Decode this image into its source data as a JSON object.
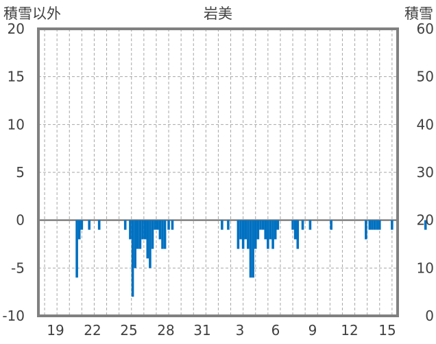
{
  "chart_data": {
    "type": "bar",
    "title": "岩美",
    "left_axis_title": "積雪以外",
    "right_axis_title": "積雪",
    "left_ylim": [
      -10,
      20
    ],
    "right_ylim": [
      0,
      60
    ],
    "left_ticks": [
      "20",
      "15",
      "10",
      "5",
      "0",
      "-5",
      "-10"
    ],
    "right_ticks": [
      "60",
      "50",
      "40",
      "30",
      "20",
      "10",
      "0"
    ],
    "x_tick_labels": [
      "19",
      "22",
      "25",
      "28",
      "31",
      "3",
      "6",
      "9",
      "12",
      "15"
    ],
    "grid": "dashed",
    "bar_color": "#0070C0",
    "series": [
      {
        "values": [
          [
            20.6,
            -6
          ],
          [
            20.8,
            -2
          ],
          [
            21,
            -1
          ],
          [
            21.6,
            -1
          ],
          [
            22.4,
            -1
          ],
          [
            24.5,
            -1
          ],
          [
            24.9,
            -2
          ],
          [
            25.1,
            -8
          ],
          [
            25.3,
            -5
          ],
          [
            25.5,
            -3
          ],
          [
            25.7,
            -3
          ],
          [
            25.9,
            -2
          ],
          [
            26.1,
            -2
          ],
          [
            26.3,
            -4
          ],
          [
            26.5,
            -5
          ],
          [
            26.7,
            -3
          ],
          [
            26.9,
            -1
          ],
          [
            27.1,
            -1
          ],
          [
            27.3,
            -2
          ],
          [
            27.5,
            -3
          ],
          [
            27.7,
            -3
          ],
          [
            28.0,
            -1
          ],
          [
            28.3,
            -1
          ],
          [
            32.3,
            -1
          ],
          [
            32.8,
            -1
          ],
          [
            33.6,
            -3
          ],
          [
            33.8,
            -2
          ],
          [
            34.0,
            -3
          ],
          [
            34.2,
            -2
          ],
          [
            34.4,
            -3
          ],
          [
            34.6,
            -6
          ],
          [
            34.8,
            -6
          ],
          [
            35.0,
            -3
          ],
          [
            35.2,
            -2
          ],
          [
            35.4,
            -1
          ],
          [
            35.6,
            -1
          ],
          [
            35.8,
            -2
          ],
          [
            36.0,
            -3
          ],
          [
            36.2,
            -2
          ],
          [
            36.4,
            -3
          ],
          [
            36.6,
            -2
          ],
          [
            36.8,
            -1
          ],
          [
            38.0,
            -1
          ],
          [
            38.2,
            -2
          ],
          [
            38.4,
            -3
          ],
          [
            38.8,
            -1
          ],
          [
            39.4,
            -1
          ],
          [
            41.1,
            -1
          ],
          [
            43.9,
            -2
          ],
          [
            44.2,
            -1
          ],
          [
            44.4,
            -1
          ],
          [
            44.6,
            -1
          ],
          [
            44.8,
            -1
          ],
          [
            45.0,
            -1
          ],
          [
            46.0,
            -1
          ],
          [
            48.7,
            -1
          ]
        ]
      }
    ]
  }
}
